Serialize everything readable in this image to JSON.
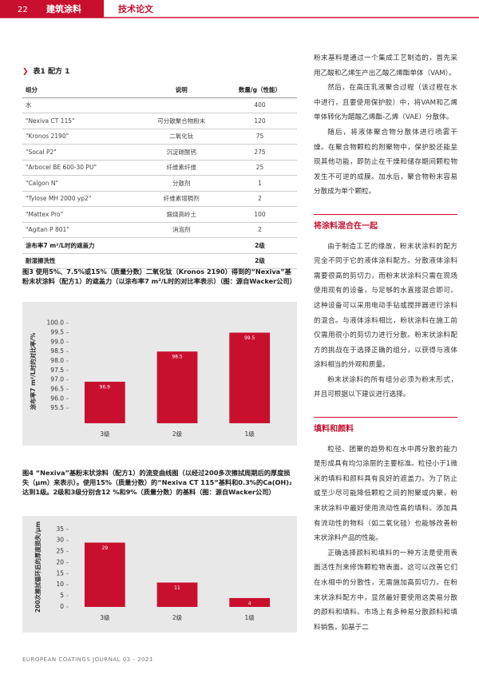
{
  "header": {
    "page_number": "22",
    "section": "建筑涂料",
    "category": "技术论文"
  },
  "table": {
    "title": "表1 配方 1",
    "columns": [
      "组分",
      "说明",
      "数量/g（性能）"
    ],
    "rows": [
      [
        "水",
        null,
        "400"
      ],
      [
        "\"Nexiva CT 115\"",
        "可分散聚合物粉末",
        "120"
      ],
      [
        "\"Kronos 2190\"",
        "二氧化钛",
        "75"
      ],
      [
        "\"Socal P2\"",
        "沉淀碳酸钙",
        "275"
      ],
      [
        "\"Arbocel BE 600-30 PU\"",
        "纤维素纤维",
        "25"
      ],
      [
        "\"Calgon N\"",
        "分散剂",
        "1"
      ],
      [
        "\"Tylose MH 2000 yp2\"",
        "纤维素增稠剂",
        "2"
      ],
      [
        "\"Mattex Pro\"",
        "煅烧高岭土",
        "100"
      ],
      [
        "\"Agitan P 801\"",
        "消泡剂",
        "2"
      ],
      [
        "涂布率7 m²/L时的遮盖力",
        null,
        "2级"
      ],
      [
        "耐湿擦洗性",
        null,
        "2级"
      ]
    ]
  },
  "chart_data": [
    {
      "type": "bar",
      "title": "图3 使用5%、7.5%或15%（质量分数）二氧化钛（Kronos 2190）得到的“Nexiva”基粉末状涂料（配方1）的遮盖力（以涂布率7 m²/L时的对比率表示）（图：源自Wacker公司）",
      "y_label": "涂布率7 m²/L时的对比率/%",
      "categories": [
        "3级",
        "2级",
        "1级"
      ],
      "values": [
        96.9,
        98.5,
        99.5
      ],
      "color": "#c8102e",
      "ylim": [
        94.7,
        100.2
      ],
      "yticks": [
        {
          "value": 100,
          "label": "100.0"
        },
        99.5,
        {
          "value": 99,
          "label": "99.0"
        },
        98.5,
        {
          "value": 98,
          "label": "98.0"
        },
        97.5,
        {
          "value": 97,
          "label": "97.0"
        },
        96.5,
        {
          "value": 96,
          "label": "96.0"
        },
        95.5
      ]
    },
    {
      "type": "bar",
      "title": "图4 “Nexiva”基粉末状涂料（配方1）的流变曲线图（以经过200多次擦拭周期后的厚度损失（μm）来表示）。使用15%（质量分数）的“Nexiva CT 115”基料和0.3%的Ca(OH)₂达到1级。2级和3级分别含12 %和9%（质量分数）的基料（图：源自Wacker公司）",
      "y_label": "200次擦拭循环后的厚度损失/μm",
      "categories": [
        "3级",
        "2级",
        "1级"
      ],
      "values": [
        29,
        11,
        4
      ],
      "color": "#c8102e",
      "ylim": [
        0,
        36
      ],
      "yticks": [
        35,
        30,
        25,
        20,
        15,
        10,
        5,
        0
      ]
    }
  ],
  "article": {
    "intro": [
      "粉末基料是通过一个集成工艺制造的，首先采用乙酸和乙烯生产出乙酸乙烯酯单体（VAM）。",
      "然后，在高压乳液聚合过程（该过程在水中进行，且要使用保护胶）中，将VAM和乙烯单体转化为醋酸乙烯酯-乙烯（VAE）分散体。",
      "随后，将液体聚合物分散体进行喷雾干燥。在聚合物颗粒的附聚物中，保护胶还能呈现其他功能，即防止在干燥和储存期间颗粒物发生不可逆的成膜。加水后，聚合物粉末容易分散成为单个颗粒。"
    ],
    "sections": [
      {
        "heading": "将涂料混合在一起",
        "paragraphs": [
          "由于制造工艺的缘故，粉末状涂料的配方完全不同于它的液体涂料配方。分散液体涂料需要很高的剪切力，而粉末状涂料只需在现场使用现有的设备，与足够的水直接混合即可。这种设备可以采用电动手钻或搅拌器进行涂料的混合。与液体涂料相比，粉状涂料在施工前仅需用很小的剪切力进行分散。粉末状涂料配方的挑战在于选择正确的组分，以获得与液体涂料相当的外观和质量。",
          "粉末状涂料的所有组分必须为粉末形式，并且可根据以下建议进行选择。"
        ]
      },
      {
        "heading": "填料和颜料",
        "paragraphs": [
          "粒径、团聚的趋势和在水中再分散的能力是形成具有均匀涂层的主要标准。粒径小于1微米的填料和颜料具有良好的遮盖力。为了防止或至少尽可能降低颗粒之间的附聚或内聚，粉末状涂料中最好使用流动性高的填料。添加具有流动性的物料（如二氧化硅）也能够改善粉末状涂料产品的性能。",
          "正确选择颜料和填料的一种方法是使用表面活性剂来修饰颗粒物表面。这可以改善它们在水相中的分散性，无需施加高剪切力。在粉末状涂料配方中，显然最好要使用这类易分散的颜料和填料。市场上有多种易分散颜料和填料销售，如基于二"
        ]
      }
    ]
  },
  "footer": "EUROPEAN COATINGS JOURNAL 03 - 2021"
}
